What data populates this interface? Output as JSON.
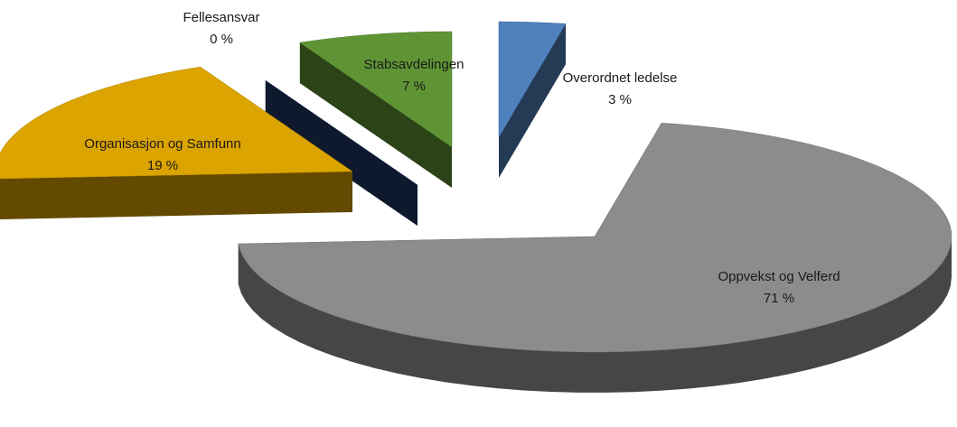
{
  "chart_data": {
    "type": "pie3d",
    "categories": [
      "Overordnet ledelse",
      "Oppvekst og Velferd",
      "Organisasjon og Samfunn",
      "Fellesansvar",
      "Stabsavdelingen"
    ],
    "values": [
      3,
      71,
      19,
      0,
      7
    ],
    "value_labels": [
      "3 %",
      "71 %",
      "19 %",
      "0 %",
      "7 %"
    ],
    "colors": [
      "#4f81bd",
      "#8c8c8c",
      "#dca400",
      "#1f3864",
      "#5f9434"
    ]
  }
}
